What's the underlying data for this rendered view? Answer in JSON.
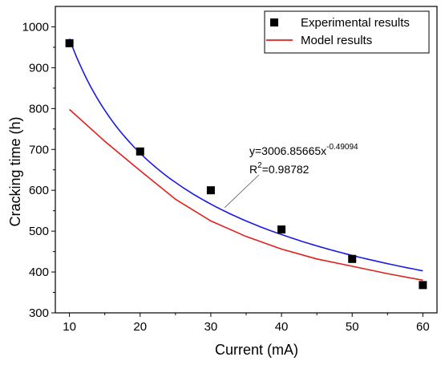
{
  "chart_data": {
    "type": "scatter",
    "xlabel": "Current (mA)",
    "ylabel": "Cracking time (h)",
    "xlim": [
      8,
      62
    ],
    "ylim": [
      300,
      1050
    ],
    "x_ticks": [
      10,
      20,
      30,
      40,
      50,
      60
    ],
    "y_ticks": [
      300,
      400,
      500,
      600,
      700,
      800,
      900,
      1000
    ],
    "grid": false,
    "legend_position": "top-right",
    "series": [
      {
        "name": "Experimental results",
        "kind": "markers",
        "marker": "square",
        "color": "#000000",
        "x": [
          10,
          20,
          30,
          40,
          50,
          60
        ],
        "y": [
          960,
          695,
          600,
          504,
          432,
          368
        ]
      },
      {
        "name": "Model results",
        "kind": "line",
        "color": "#e0201b",
        "x": [
          10,
          15,
          20,
          25,
          30,
          35,
          40,
          45,
          50,
          55,
          60
        ],
        "y": [
          798,
          720,
          648,
          578,
          525,
          487,
          456,
          432,
          414,
          396,
          380
        ]
      }
    ],
    "fit": {
      "kind": "line",
      "color": "#1a1ae0",
      "coefficient": 3006.85665,
      "exponent": -0.49094,
      "x_range": [
        10,
        60
      ]
    },
    "annotation": {
      "equation_prefix": "y=3006.85665x",
      "equation_exponent": "-0.49094",
      "r2_prefix": "R",
      "r2_power": "2",
      "r2_value": "=0.98782"
    }
  }
}
